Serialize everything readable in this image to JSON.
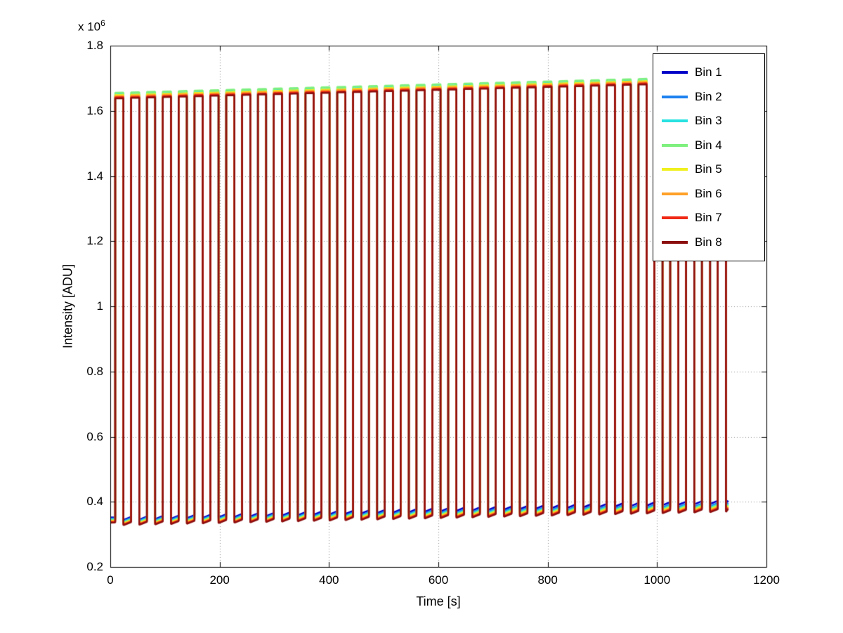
{
  "figure": {
    "background": "#ffffff",
    "axis_color": "#000000"
  },
  "chart_data": {
    "type": "line",
    "title": "",
    "xlabel": "Time [s]",
    "ylabel": "Intensity [ADU]",
    "y_axis_multiplier": {
      "prefix": "x 10",
      "exponent": "6"
    },
    "xlim": [
      0,
      1200
    ],
    "ylim": [
      200000,
      1800000
    ],
    "xticks": [
      0,
      200,
      400,
      600,
      800,
      1000,
      1200
    ],
    "xtick_labels": [
      "0",
      "200",
      "400",
      "600",
      "800",
      "1000",
      "1200"
    ],
    "yticks": [
      200000,
      400000,
      600000,
      800000,
      1000000,
      1200000,
      1400000,
      1600000,
      1800000
    ],
    "ytick_labels": [
      "0.2",
      "0.4",
      "0.6",
      "0.8",
      "1",
      "1.2",
      "1.4",
      "1.6",
      "1.8"
    ],
    "grid": true,
    "grid_style": "dotted",
    "legend": {
      "position": "northeast",
      "entries": [
        "Bin 1",
        "Bin 2",
        "Bin 3",
        "Bin 4",
        "Bin 5",
        "Bin 6",
        "Bin 7",
        "Bin 8"
      ]
    },
    "pulse_train": {
      "t_start": 0,
      "t_end": 1130,
      "first_pulse_start": 9,
      "pulse_period": 29,
      "pulse_count": 39,
      "pulse_width": 15,
      "baseline_dip": 9000,
      "bins": [
        {
          "label": "Bin 1",
          "color": "#0000c8",
          "baseline_start": 352000,
          "baseline_end": 404000,
          "peak_start": 1642000,
          "peak_end": 1692000
        },
        {
          "label": "Bin 2",
          "color": "#1e82f0",
          "baseline_start": 349000,
          "baseline_end": 397000,
          "peak_start": 1646000,
          "peak_end": 1696000
        },
        {
          "label": "Bin 3",
          "color": "#28e1e1",
          "baseline_start": 346000,
          "baseline_end": 393000,
          "peak_start": 1650000,
          "peak_end": 1700000
        },
        {
          "label": "Bin 4",
          "color": "#7df07d",
          "baseline_start": 344000,
          "baseline_end": 390000,
          "peak_start": 1655000,
          "peak_end": 1705000
        },
        {
          "label": "Bin 5",
          "color": "#f0f01e",
          "baseline_start": 342000,
          "baseline_end": 387000,
          "peak_start": 1648000,
          "peak_end": 1698000
        },
        {
          "label": "Bin 6",
          "color": "#ffa028",
          "baseline_start": 340000,
          "baseline_end": 384000,
          "peak_start": 1645000,
          "peak_end": 1695000
        },
        {
          "label": "Bin 7",
          "color": "#f02814",
          "baseline_start": 338000,
          "baseline_end": 381000,
          "peak_start": 1641000,
          "peak_end": 1691000
        },
        {
          "label": "Bin 8",
          "color": "#8c0f0f",
          "baseline_start": 336000,
          "baseline_end": 378000,
          "peak_start": 1638000,
          "peak_end": 1688000
        }
      ]
    }
  }
}
